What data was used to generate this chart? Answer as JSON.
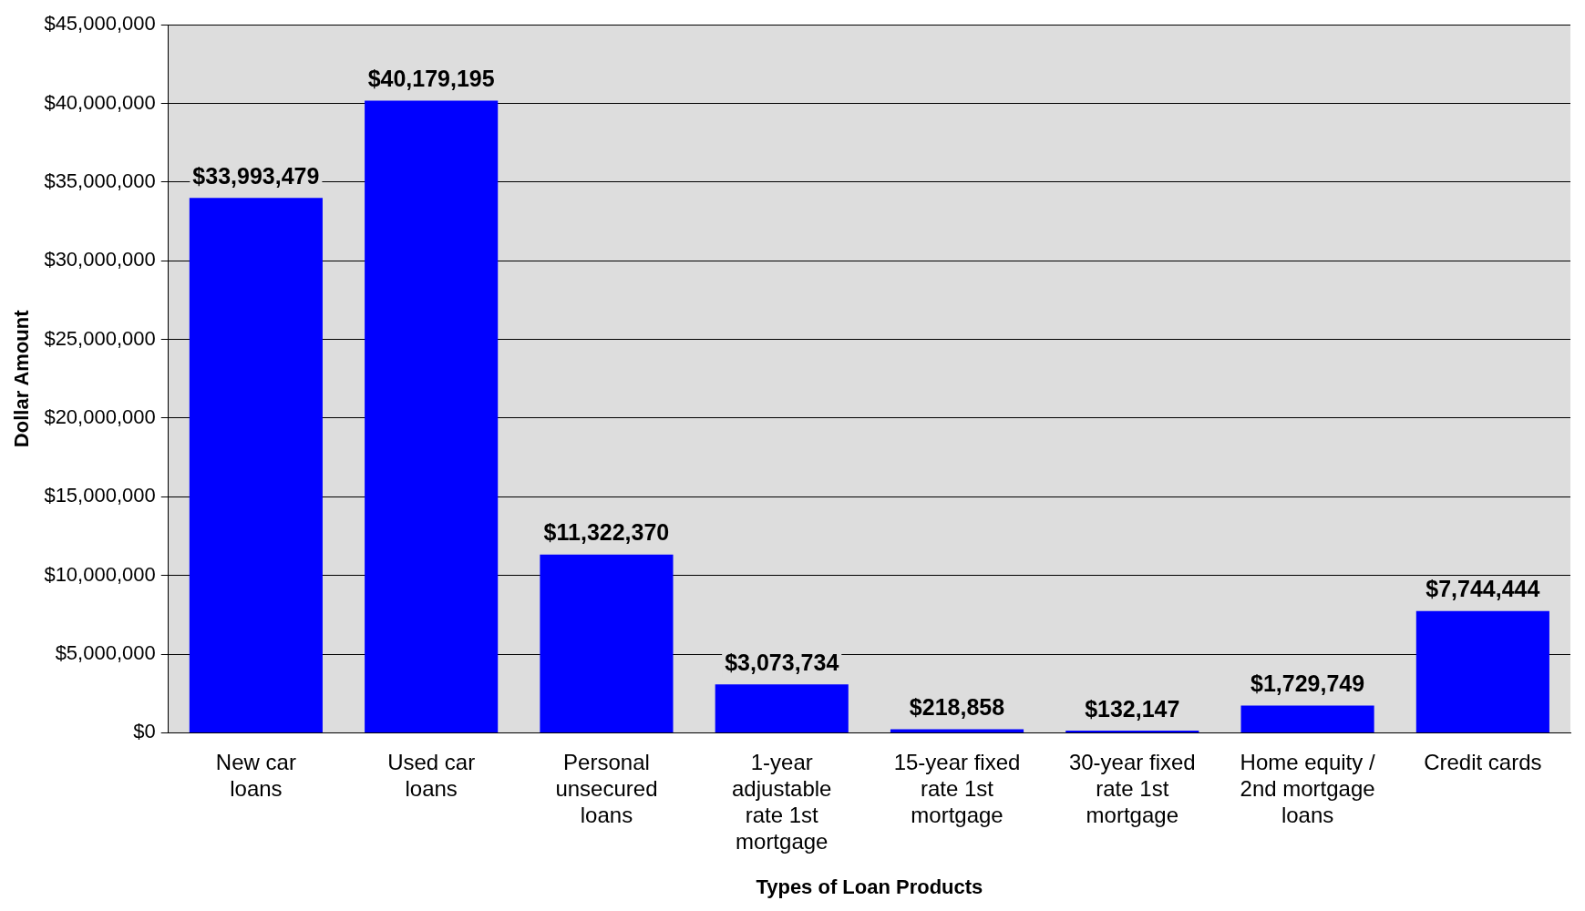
{
  "chart_data": {
    "type": "bar",
    "xlabel": "Types of Loan Products",
    "ylabel": "Dollar Amount",
    "categories": [
      "New car loans",
      "Used car loans",
      "Personal unsecured loans",
      "1-year adjustable rate 1st mortgage",
      "15-year fixed rate 1st mortgage",
      "30-year fixed rate 1st mortgage",
      "Home equity / 2nd mortgage loans",
      "Credit cards"
    ],
    "values": [
      33993479,
      40179195,
      11322370,
      3073734,
      218858,
      132147,
      1729749,
      7744444
    ],
    "value_labels": [
      "$33,993,479",
      "$40,179,195",
      "$11,322,370",
      "$3,073,734",
      "$218,858",
      "$132,147",
      "$1,729,749",
      "$7,744,444"
    ],
    "color": "#0000ff",
    "ylim": [
      0,
      45000000
    ],
    "yticks": [
      {
        "value": 0,
        "label": "$0"
      },
      {
        "value": 5000000,
        "label": "$5,000,000"
      },
      {
        "value": 10000000,
        "label": "$10,000,000"
      },
      {
        "value": 15000000,
        "label": "$15,000,000"
      },
      {
        "value": 20000000,
        "label": "$20,000,000"
      },
      {
        "value": 25000000,
        "label": "$25,000,000"
      },
      {
        "value": 30000000,
        "label": "$30,000,000"
      },
      {
        "value": 35000000,
        "label": "$35,000,000"
      },
      {
        "value": 40000000,
        "label": "$40,000,000"
      },
      {
        "value": 45000000,
        "label": "$45,000,000"
      }
    ],
    "grid": "y",
    "legend": false
  }
}
